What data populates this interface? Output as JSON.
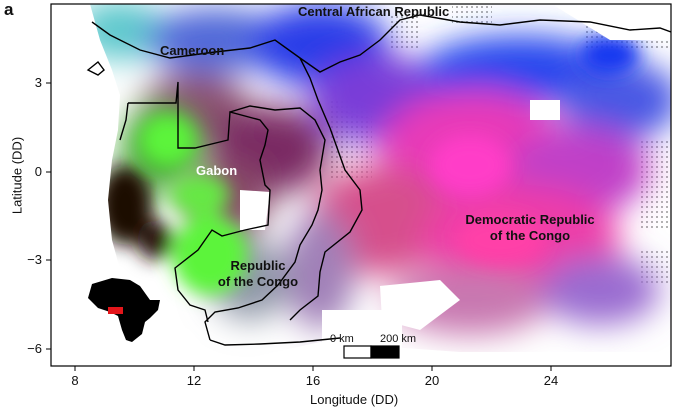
{
  "panel_label": "a",
  "axes": {
    "xlabel": "Longitude (DD)",
    "ylabel": "Latitude (DD)",
    "x_ticks": [
      "8",
      "12",
      "16",
      "20",
      "24"
    ],
    "y_ticks": [
      "3",
      "0",
      "−3",
      "−6"
    ]
  },
  "countries": {
    "car": "Central African  Republic",
    "cameroon": "Cameroon",
    "gabon": "Gabon",
    "drc_line1": "Democratic Republic",
    "drc_line2": "of the Congo",
    "roc_line1": "Republic",
    "roc_line2": "of the Congo"
  },
  "scale_bar": {
    "label_start": "0 km",
    "label_end": "200 km"
  },
  "inset": {
    "name": "africa-locator-inset"
  },
  "colors": {
    "frame": "#000000",
    "highlight": "#e4161b",
    "dark_forest": "#1a0805",
    "green": "#5cf43a",
    "magenta": "#ef36b4",
    "blue": "#2646ee",
    "violet": "#8040d8",
    "cyan": "#40b4d8"
  }
}
